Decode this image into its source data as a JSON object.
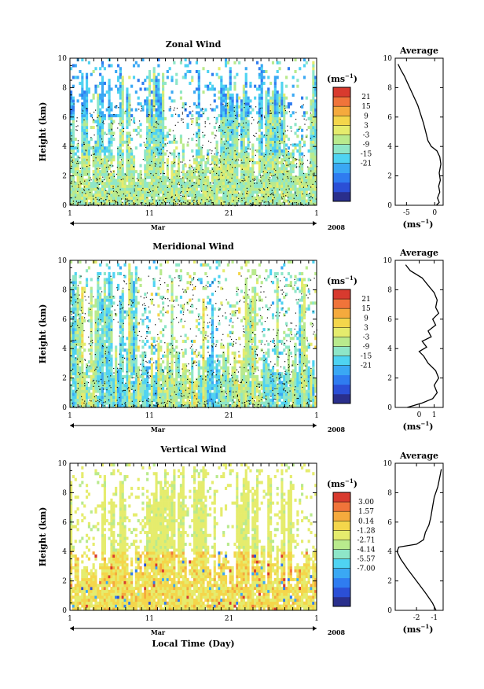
{
  "chart_data": [
    {
      "type": "heatmap",
      "title": "Zonal Wind",
      "ylabel": "Height (km)",
      "xlabel": "",
      "ylim": [
        0,
        10
      ],
      "x_ticks": [
        "1",
        "11",
        "21",
        "1"
      ],
      "y_ticks": [
        "0",
        "2",
        "4",
        "6",
        "8",
        "10"
      ],
      "month_label": "Mar",
      "year_label": "2008",
      "colorbar": {
        "unit_base": "(ms",
        "unit_exp": "−1",
        "unit_close": ")",
        "ticks": [
          "21",
          "15",
          "9",
          "3",
          "-3",
          "-9",
          "-15",
          "-21"
        ],
        "range": [
          -24,
          24
        ],
        "colors": [
          "#2a2f8c",
          "#2b4fd6",
          "#2f7cf0",
          "#3aa8f4",
          "#4fd3f2",
          "#8ee6c8",
          "#b9ea8d",
          "#e5ec6d",
          "#f4d64b",
          "#f5aa3d",
          "#f0743a",
          "#d83a2e"
        ]
      },
      "average": {
        "title": "Average",
        "xlabel_base": "(ms",
        "xlabel_exp": "−1",
        "xlabel_close": ")",
        "xlim": [
          -7,
          1.5
        ],
        "x_ticks": [
          "-5",
          "0"
        ],
        "y_ticks": [
          "0",
          "2",
          "4",
          "6",
          "8",
          "10"
        ],
        "points": [
          [
            0.3,
            0
          ],
          [
            0.8,
            0.2
          ],
          [
            0.5,
            0.5
          ],
          [
            0.9,
            0.9
          ],
          [
            0.7,
            1.3
          ],
          [
            1.0,
            1.7
          ],
          [
            0.8,
            2.2
          ],
          [
            1.1,
            2.8
          ],
          [
            0.9,
            3.3
          ],
          [
            0.4,
            3.7
          ],
          [
            -0.6,
            4.0
          ],
          [
            -1.2,
            4.4
          ],
          [
            -1.6,
            5.0
          ],
          [
            -2.0,
            5.6
          ],
          [
            -2.5,
            6.2
          ],
          [
            -3.0,
            6.8
          ],
          [
            -3.6,
            7.3
          ],
          [
            -4.2,
            7.8
          ],
          [
            -4.8,
            8.3
          ],
          [
            -5.4,
            8.8
          ],
          [
            -6.0,
            9.2
          ],
          [
            -6.5,
            9.6
          ]
        ]
      }
    },
    {
      "type": "heatmap",
      "title": "Meridional Wind",
      "ylabel": "Height (km)",
      "xlabel": "",
      "ylim": [
        0,
        10
      ],
      "x_ticks": [
        "1",
        "11",
        "21",
        "1"
      ],
      "y_ticks": [
        "0",
        "2",
        "4",
        "6",
        "8",
        "10"
      ],
      "month_label": "Mar",
      "year_label": "2008",
      "colorbar": {
        "unit_base": "(ms",
        "unit_exp": "−1",
        "unit_close": ")",
        "ticks": [
          "21",
          "15",
          "9",
          "3",
          "-3",
          "-9",
          "-15",
          "-21"
        ],
        "range": [
          -24,
          24
        ],
        "colors": [
          "#2a2f8c",
          "#2b4fd6",
          "#2f7cf0",
          "#3aa8f4",
          "#4fd3f2",
          "#8ee6c8",
          "#b9ea8d",
          "#e5ec6d",
          "#f4d64b",
          "#f5aa3d",
          "#f0743a",
          "#d83a2e"
        ]
      },
      "average": {
        "title": "Average",
        "xlabel_base": "(ms",
        "xlabel_exp": "−1",
        "xlabel_close": ")",
        "xlim": [
          -1.6,
          1.6
        ],
        "x_ticks": [
          "0",
          "1"
        ],
        "y_ticks": [
          "0",
          "2",
          "4",
          "6",
          "8",
          "10"
        ],
        "points": [
          [
            -0.8,
            0
          ],
          [
            0.2,
            0.3
          ],
          [
            0.9,
            0.6
          ],
          [
            1.2,
            1.0
          ],
          [
            1.0,
            1.5
          ],
          [
            1.3,
            2.0
          ],
          [
            1.1,
            2.5
          ],
          [
            0.6,
            3.0
          ],
          [
            0.3,
            3.5
          ],
          [
            0.0,
            3.8
          ],
          [
            0.5,
            4.1
          ],
          [
            0.2,
            4.5
          ],
          [
            0.8,
            4.8
          ],
          [
            0.6,
            5.2
          ],
          [
            1.1,
            5.6
          ],
          [
            0.9,
            6.0
          ],
          [
            1.3,
            6.4
          ],
          [
            1.1,
            6.8
          ],
          [
            1.2,
            7.3
          ],
          [
            1.0,
            7.8
          ],
          [
            0.6,
            8.3
          ],
          [
            0.2,
            8.8
          ],
          [
            -0.6,
            9.3
          ],
          [
            -0.9,
            9.7
          ]
        ]
      }
    },
    {
      "type": "heatmap",
      "title": "Vertical Wind",
      "ylabel": "Height (km)",
      "xlabel": "Local Time (Day)",
      "ylim": [
        0,
        10
      ],
      "x_ticks": [
        "1",
        "11",
        "21",
        "1"
      ],
      "y_ticks": [
        "0",
        "2",
        "4",
        "6",
        "8",
        "10"
      ],
      "month_label": "Mar",
      "year_label": "2008",
      "colorbar": {
        "unit_base": "(ms",
        "unit_exp": "−1",
        "unit_close": ")",
        "ticks": [
          "3.00",
          "1.57",
          "0.14",
          "-1.28",
          "-2.71",
          "-4.14",
          "-5.57",
          "-7.00"
        ],
        "range": [
          -7.7,
          3.7
        ],
        "colors": [
          "#2a2f8c",
          "#2b4fd6",
          "#2f7cf0",
          "#3aa8f4",
          "#4fd3f2",
          "#8ee6c8",
          "#b9ea8d",
          "#e5ec6d",
          "#f4d64b",
          "#f5aa3d",
          "#f0743a",
          "#d83a2e"
        ]
      },
      "average": {
        "title": "Average",
        "xlabel_base": "(ms",
        "xlabel_exp": "−1",
        "xlabel_close": ")",
        "xlim": [
          -3.2,
          -0.5
        ],
        "x_ticks": [
          "-2",
          "-1"
        ],
        "y_ticks": [
          "0",
          "2",
          "4",
          "6",
          "8",
          "10"
        ],
        "points": [
          [
            -0.9,
            0
          ],
          [
            -1.1,
            0.5
          ],
          [
            -1.5,
            1.2
          ],
          [
            -2.0,
            2.0
          ],
          [
            -2.5,
            2.8
          ],
          [
            -2.9,
            3.5
          ],
          [
            -3.1,
            4.0
          ],
          [
            -3.0,
            4.3
          ],
          [
            -2.0,
            4.5
          ],
          [
            -1.6,
            4.8
          ],
          [
            -1.5,
            5.3
          ],
          [
            -1.3,
            5.8
          ],
          [
            -1.2,
            6.3
          ],
          [
            -1.1,
            7.0
          ],
          [
            -1.0,
            7.7
          ],
          [
            -0.8,
            8.4
          ],
          [
            -0.7,
            9.0
          ],
          [
            -0.6,
            9.6
          ]
        ]
      }
    }
  ]
}
